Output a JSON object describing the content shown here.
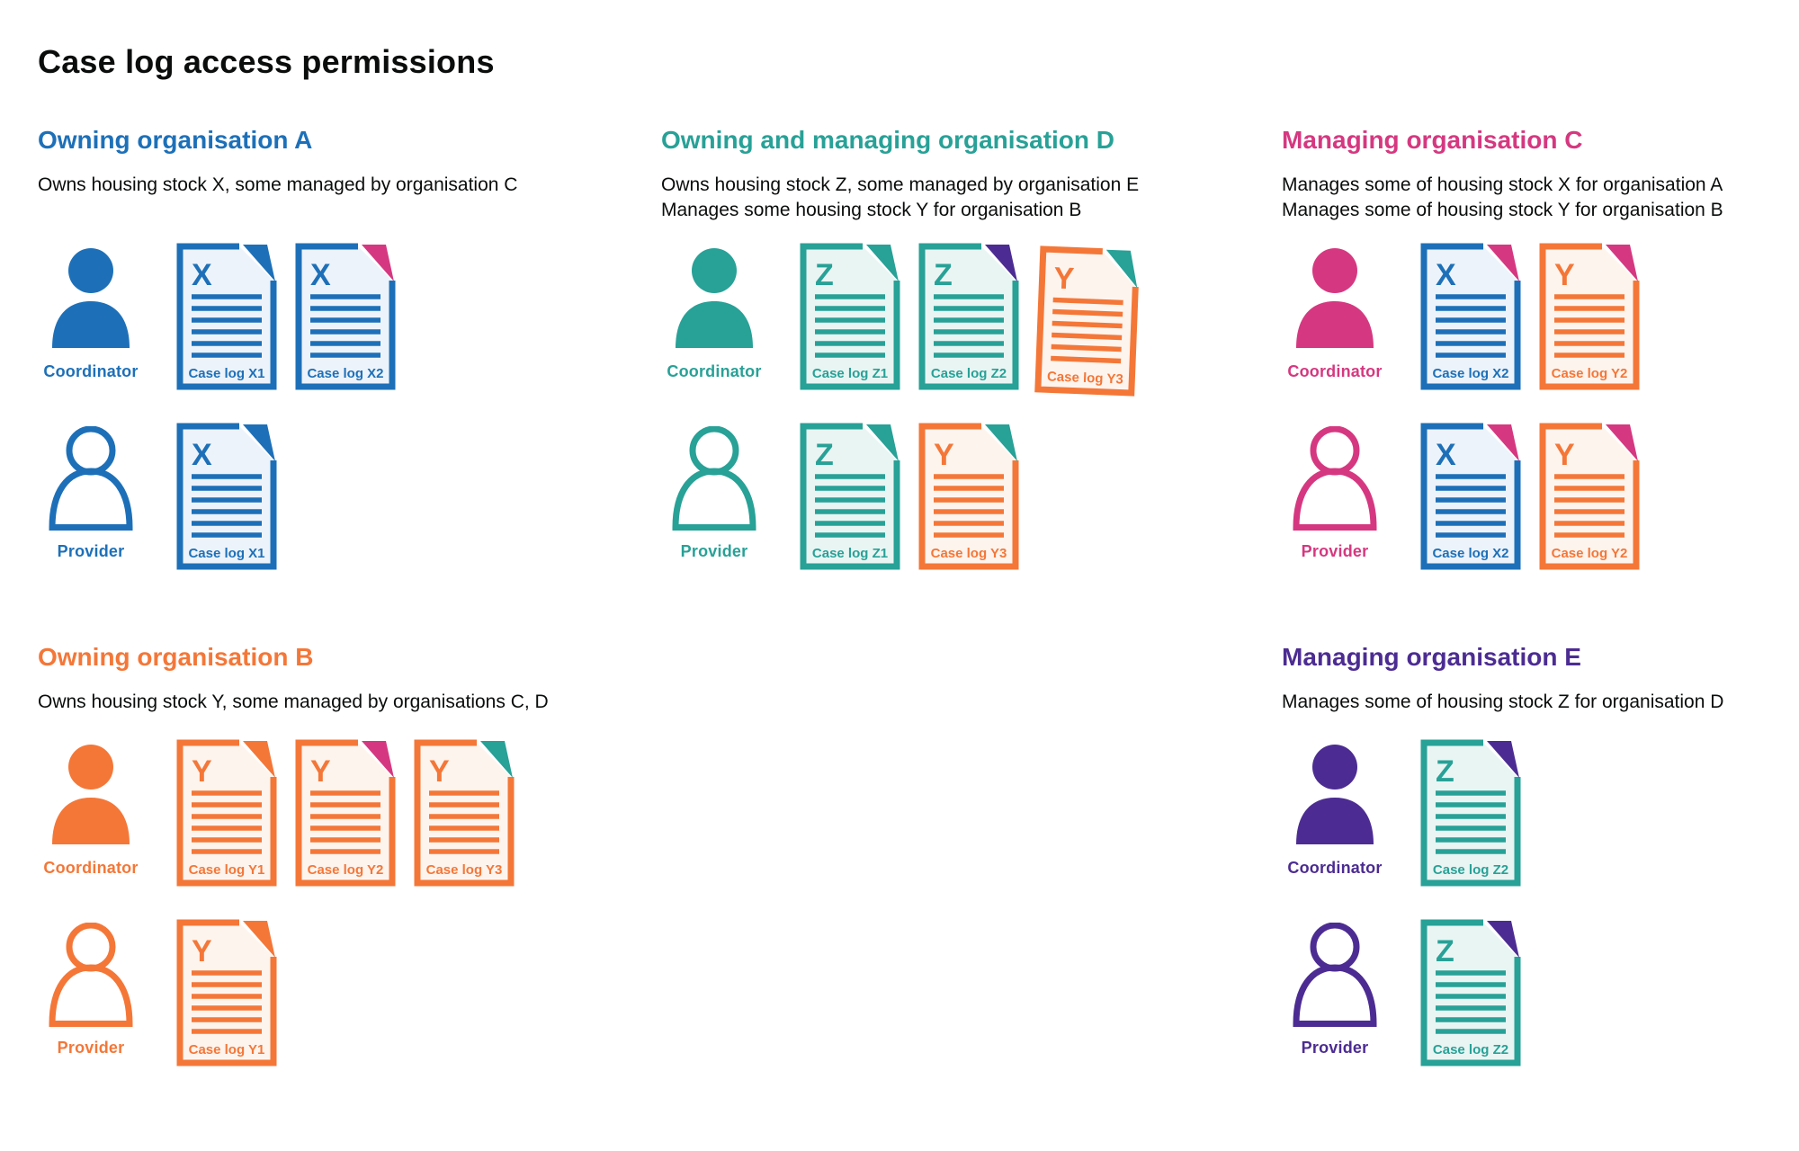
{
  "page": {
    "title": "Case log access permissions",
    "background": "#ffffff"
  },
  "colors": {
    "blue": "#1d70b8",
    "teal": "#28a197",
    "pink": "#d53880",
    "orange": "#f47738",
    "purple": "#4c2c92",
    "text": "#0b0c0c"
  },
  "tints": {
    "blue": "#edf3fa",
    "teal": "#e9f5f3",
    "orange": "#fdf4ee"
  },
  "labels": {
    "coordinator": "Coordinator",
    "provider": "Provider"
  },
  "organisations": [
    {
      "id": "A",
      "name": "Owning organisation A",
      "color": "blue",
      "description": [
        "Owns housing stock X, some managed by organisation C"
      ],
      "rows": [
        {
          "role": "coordinator",
          "person": "filled",
          "docs": [
            {
              "letter": "X",
              "label": "Case log X1",
              "color": "blue",
              "fold": "blue"
            },
            {
              "letter": "X",
              "label": "Case log X2",
              "color": "blue",
              "fold": "pink"
            }
          ]
        },
        {
          "role": "provider",
          "person": "outline",
          "docs": [
            {
              "letter": "X",
              "label": "Case log X1",
              "color": "blue",
              "fold": "blue"
            }
          ]
        }
      ]
    },
    {
      "id": "D",
      "name": "Owning and managing organisation D",
      "color": "teal",
      "description": [
        "Owns housing stock Z, some managed by organisation E",
        "Manages some housing stock Y for organisation B"
      ],
      "rows": [
        {
          "role": "coordinator",
          "person": "filled",
          "docs": [
            {
              "letter": "Z",
              "label": "Case log Z1",
              "color": "teal",
              "fold": "teal"
            },
            {
              "letter": "Z",
              "label": "Case log Z2",
              "color": "teal",
              "fold": "purple"
            },
            {
              "letter": "Y",
              "label": "Case log Y3",
              "color": "orange",
              "fold": "teal",
              "tilt": true
            }
          ]
        },
        {
          "role": "provider",
          "person": "outline",
          "docs": [
            {
              "letter": "Z",
              "label": "Case log Z1",
              "color": "teal",
              "fold": "teal"
            },
            {
              "letter": "Y",
              "label": "Case log Y3",
              "color": "orange",
              "fold": "teal"
            }
          ]
        }
      ]
    },
    {
      "id": "C",
      "name": "Managing organisation C",
      "color": "pink",
      "description": [
        "Manages some of housing stock X for organisation A",
        "Manages some of housing stock Y for organisation B"
      ],
      "rows": [
        {
          "role": "coordinator",
          "person": "filled",
          "docs": [
            {
              "letter": "X",
              "label": "Case log X2",
              "color": "blue",
              "fold": "pink"
            },
            {
              "letter": "Y",
              "label": "Case log Y2",
              "color": "orange",
              "fold": "pink"
            }
          ]
        },
        {
          "role": "provider",
          "person": "outline",
          "docs": [
            {
              "letter": "X",
              "label": "Case log X2",
              "color": "blue",
              "fold": "pink"
            },
            {
              "letter": "Y",
              "label": "Case log Y2",
              "color": "orange",
              "fold": "pink"
            }
          ]
        }
      ]
    },
    {
      "id": "B",
      "name": "Owning organisation B",
      "color": "orange",
      "description": [
        "Owns housing stock Y, some managed by organisations C, D"
      ],
      "rows": [
        {
          "role": "coordinator",
          "person": "filled",
          "docs": [
            {
              "letter": "Y",
              "label": "Case log Y1",
              "color": "orange",
              "fold": "orange"
            },
            {
              "letter": "Y",
              "label": "Case log Y2",
              "color": "orange",
              "fold": "pink"
            },
            {
              "letter": "Y",
              "label": "Case log Y3",
              "color": "orange",
              "fold": "teal"
            }
          ]
        },
        {
          "role": "provider",
          "person": "outline",
          "docs": [
            {
              "letter": "Y",
              "label": "Case log Y1",
              "color": "orange",
              "fold": "orange"
            }
          ]
        }
      ]
    },
    {
      "id": "E",
      "name": "Managing organisation E",
      "color": "purple",
      "description": [
        "Manages some of housing stock Z for organisation D"
      ],
      "rows": [
        {
          "role": "coordinator",
          "person": "filled",
          "docs": [
            {
              "letter": "Z",
              "label": "Case log Z2",
              "color": "teal",
              "fold": "purple"
            }
          ]
        },
        {
          "role": "provider",
          "person": "outline",
          "docs": [
            {
              "letter": "Z",
              "label": "Case log Z2",
              "color": "teal",
              "fold": "purple"
            }
          ]
        }
      ]
    }
  ]
}
